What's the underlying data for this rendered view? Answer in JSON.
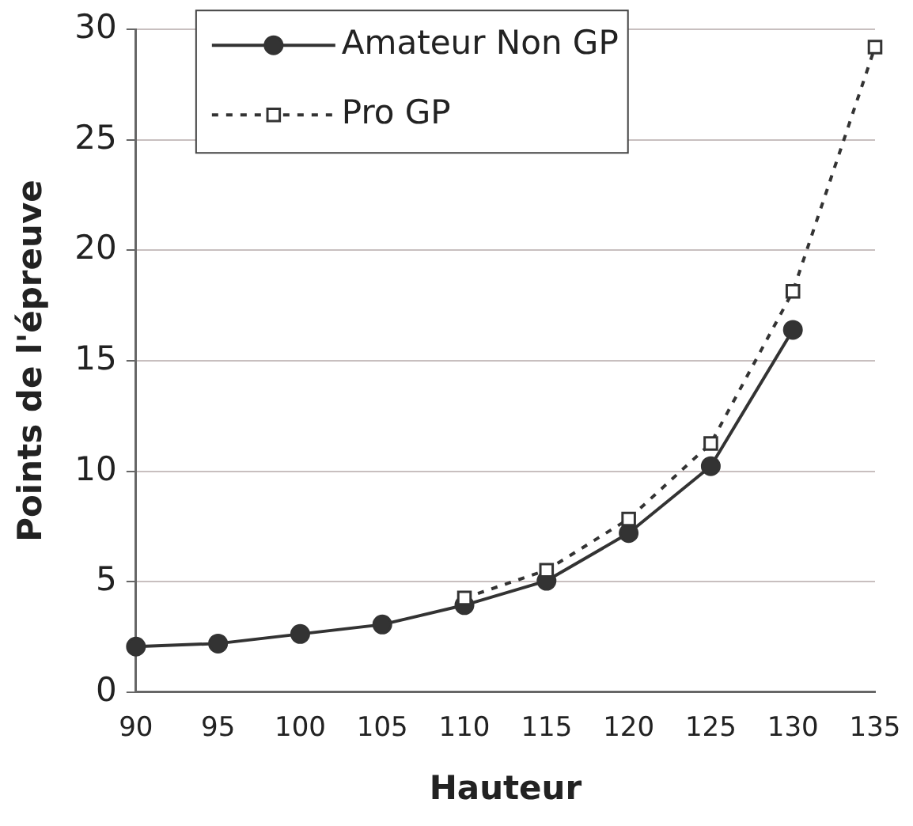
{
  "chart_data": {
    "type": "line",
    "xlabel": "Hauteur",
    "ylabel": "Points de l'épreuve",
    "x": [
      90,
      95,
      100,
      105,
      110,
      115,
      120,
      125,
      130,
      135
    ],
    "series": [
      {
        "name": "Amateur Non GP",
        "color": "#333333",
        "marker": "circle",
        "line_style": "solid",
        "values": [
          2.06,
          2.2,
          2.63,
          3.06,
          3.94,
          5.04,
          7.2,
          10.23,
          16.4,
          null
        ]
      },
      {
        "name": "Pro GP",
        "color": "#333333",
        "marker": "square",
        "line_style": "dotted",
        "values": [
          null,
          null,
          null,
          null,
          4.26,
          5.52,
          7.84,
          11.26,
          18.14,
          29.2
        ]
      }
    ],
    "xlim": [
      90,
      135
    ],
    "xticks": [
      90,
      95,
      100,
      105,
      110,
      115,
      120,
      125,
      130,
      135
    ],
    "ylim": [
      0,
      30
    ],
    "yticks": [
      0,
      5,
      10,
      15,
      20,
      25,
      30
    ],
    "grid": "y",
    "legend": "top"
  }
}
